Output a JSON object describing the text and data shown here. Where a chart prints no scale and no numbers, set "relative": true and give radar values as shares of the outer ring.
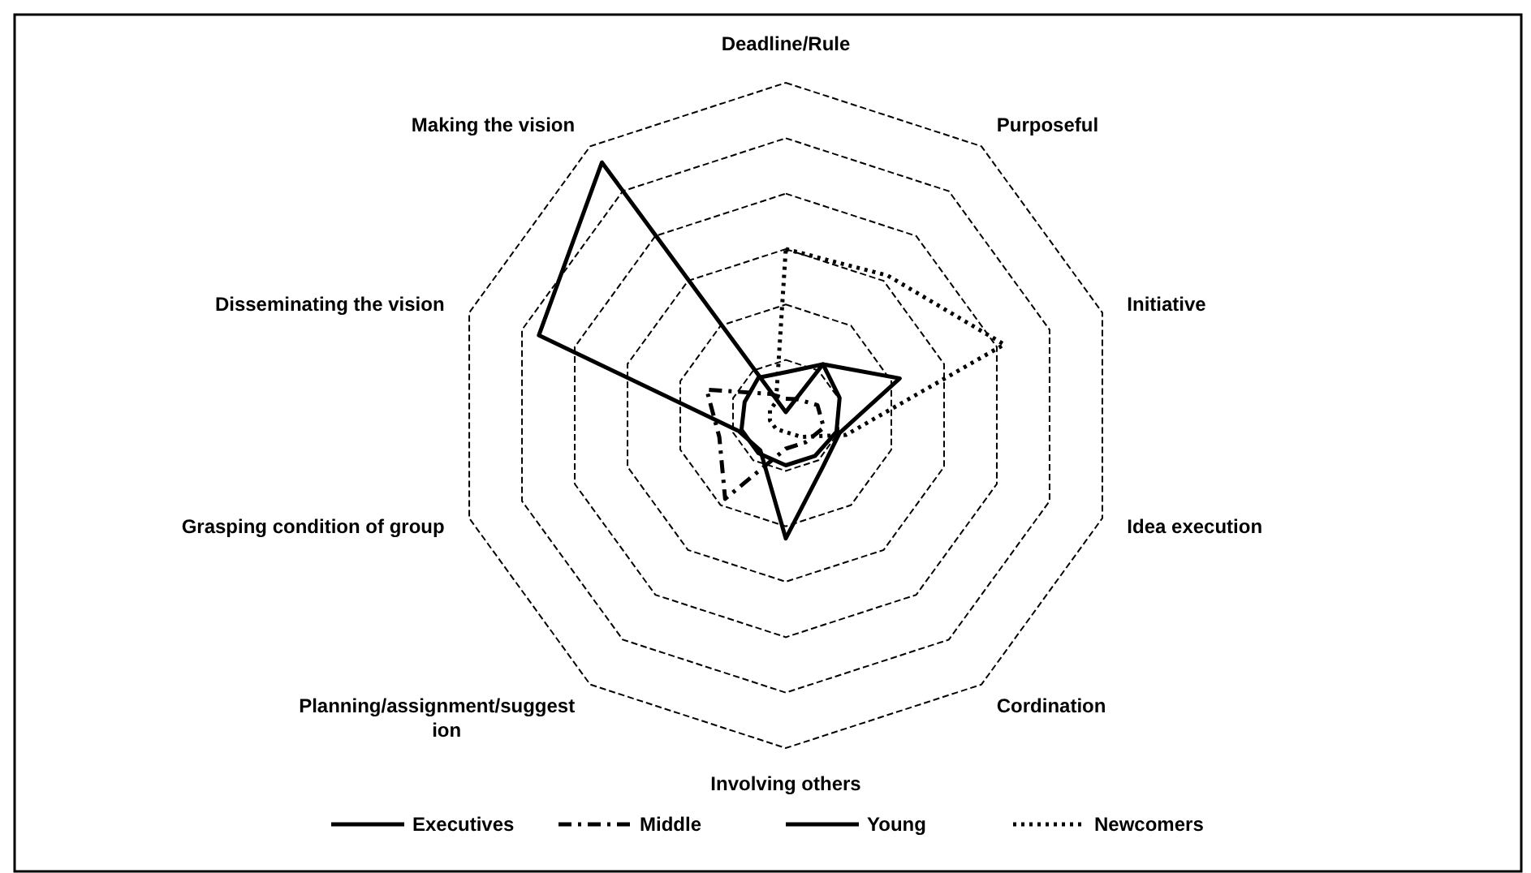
{
  "chart_data": {
    "type": "radar",
    "relative": true,
    "legend": "bottom",
    "categories": [
      "Deadline/Rule",
      "Purposeful",
      "Initiative",
      "Idea execution",
      "Cordination",
      "Involving others",
      "Planning/assignment/suggestion",
      "Grasping condition of group",
      "Disseminating the vision",
      "Making the vision"
    ],
    "series": [
      {
        "name": "Executives",
        "color": "#000000",
        "line_style": "solid",
        "values": [
          0.01,
          0.19,
          0.36,
          0.17,
          0.19,
          0.37,
          0.13,
          0.15,
          0.78,
          0.94
        ]
      },
      {
        "name": "Middle",
        "color": "#000000",
        "line_style": "dashed",
        "values": [
          0.05,
          0.06,
          0.1,
          0.12,
          0.1,
          0.1,
          0.31,
          0.21,
          0.25,
          0.08
        ]
      },
      {
        "name": "Young",
        "color": "#000000",
        "line_style": "solid",
        "values": [
          0.13,
          0.19,
          0.17,
          0.16,
          0.15,
          0.15,
          0.14,
          0.14,
          0.13,
          0.14
        ]
      },
      {
        "name": "Newcomers",
        "color": "#000000",
        "line_style": "dotted",
        "values": [
          0.5,
          0.52,
          0.69,
          0.19,
          0.08,
          0.05,
          0.05,
          0.05,
          0.05,
          0.05
        ]
      }
    ]
  }
}
